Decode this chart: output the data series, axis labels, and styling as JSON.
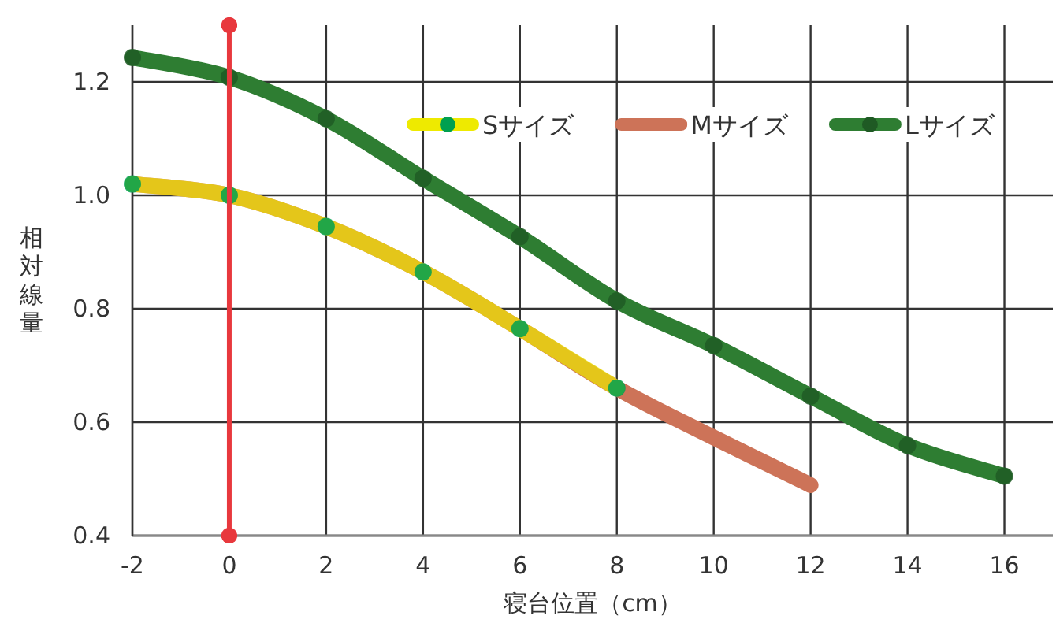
{
  "chart_data": {
    "type": "line",
    "xlabel": "寝台位置（cm）",
    "ylabel": "相対線量",
    "xlim": [
      -2,
      17
    ],
    "ylim": [
      0.4,
      1.3
    ],
    "xticks": [
      -2,
      0,
      2,
      4,
      6,
      8,
      10,
      12,
      14,
      16
    ],
    "yticks": [
      0.4,
      0.6,
      0.8,
      {
        "value": 1,
        "label": "1.0"
      },
      1.2
    ],
    "grid": true,
    "legend": "top right",
    "marker": "circle",
    "line_style": "solid",
    "ref_lines": [
      {
        "axis": "x",
        "value": 0,
        "color": "#e8383d"
      }
    ],
    "series": [
      {
        "name": "Sサイズ",
        "color": "#eeea00",
        "colors": [
          "#00a050",
          "#00a050",
          "#00a050",
          "#00a050",
          "#00a050",
          "#00a050"
        ],
        "x": [
          -2,
          0,
          2,
          4,
          6,
          8
        ],
        "values": [
          1.02,
          1.0,
          0.945,
          0.865,
          0.765,
          0.66
        ]
      },
      {
        "name": "Mサイズ",
        "color": "#cd7358",
        "marker": "none",
        "x": [
          -2,
          0,
          2,
          4,
          6,
          8,
          10,
          12
        ],
        "values": [
          1.02,
          1.0,
          0.945,
          0.865,
          0.765,
          0.66,
          0.573,
          0.489
        ]
      },
      {
        "name": "Lサイズ",
        "color": "#2e7d32",
        "colors": [
          "#1f5a24",
          "#1f5a24",
          "#1f5a24",
          "#1f5a24",
          "#1f5a24",
          "#1f5a24",
          "#1f5a24",
          "#1f5a24",
          "#1f5a24",
          "#1f5a24"
        ],
        "x": [
          -2,
          0,
          2,
          4,
          6,
          8,
          10,
          12,
          14,
          16
        ],
        "values": [
          1.243,
          1.208,
          1.135,
          1.03,
          0.927,
          0.814,
          0.735,
          0.646,
          0.559,
          0.505
        ]
      }
    ]
  }
}
